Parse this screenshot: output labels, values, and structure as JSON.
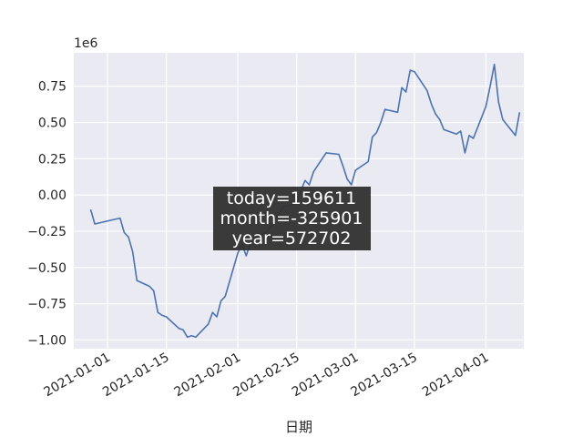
{
  "chart_data": {
    "type": "line",
    "title": "",
    "xlabel": "日期",
    "ylabel": "",
    "y_offset_label": "1e6",
    "y_multiplier": 1000000,
    "grid": true,
    "x_ticks": [
      "2021-01-01",
      "2021-01-15",
      "2021-02-01",
      "2021-02-15",
      "2021-03-01",
      "2021-03-15",
      "2021-04-01"
    ],
    "y_ticks": [
      {
        "value": 0.75,
        "label": "0.75"
      },
      {
        "value": 0.5,
        "label": "0.50"
      },
      {
        "value": 0.25,
        "label": "0.25"
      },
      {
        "value": 0.0,
        "label": "0.00"
      },
      {
        "value": -0.25,
        "label": "−0.25"
      },
      {
        "value": -0.5,
        "label": "−0.50"
      },
      {
        "value": -0.75,
        "label": "−0.75"
      },
      {
        "value": -1.0,
        "label": "−1.00"
      }
    ],
    "xlim": [
      "2020-12-24",
      "2021-04-10"
    ],
    "ylim": [
      -1.06,
      0.98
    ],
    "annotation_lines": [
      "today=159611",
      "month=-325901",
      "year=572702"
    ],
    "series": [
      {
        "color": "#4c72b0",
        "points": [
          [
            "2020-12-28",
            -0.1
          ],
          [
            "2020-12-29",
            -0.2
          ],
          [
            "2021-01-04",
            -0.16
          ],
          [
            "2021-01-05",
            -0.26
          ],
          [
            "2021-01-06",
            -0.29
          ],
          [
            "2021-01-07",
            -0.39
          ],
          [
            "2021-01-08",
            -0.59
          ],
          [
            "2021-01-11",
            -0.63
          ],
          [
            "2021-01-12",
            -0.66
          ],
          [
            "2021-01-13",
            -0.81
          ],
          [
            "2021-01-14",
            -0.83
          ],
          [
            "2021-01-15",
            -0.84
          ],
          [
            "2021-01-18",
            -0.92
          ],
          [
            "2021-01-19",
            -0.93
          ],
          [
            "2021-01-20",
            -0.98
          ],
          [
            "2021-01-21",
            -0.97
          ],
          [
            "2021-01-22",
            -0.98
          ],
          [
            "2021-01-25",
            -0.89
          ],
          [
            "2021-01-26",
            -0.81
          ],
          [
            "2021-01-27",
            -0.84
          ],
          [
            "2021-01-28",
            -0.73
          ],
          [
            "2021-01-29",
            -0.7
          ],
          [
            "2021-02-01",
            -0.4
          ],
          [
            "2021-02-02",
            -0.34
          ],
          [
            "2021-02-03",
            -0.42
          ],
          [
            "2021-02-04",
            -0.33
          ],
          [
            "2021-02-05",
            -0.3
          ],
          [
            "2021-02-08",
            -0.25
          ],
          [
            "2021-02-09",
            -0.21
          ],
          [
            "2021-02-10",
            -0.16
          ],
          [
            "2021-02-11",
            -0.12
          ],
          [
            "2021-02-12",
            -0.08
          ],
          [
            "2021-02-15",
            -0.06
          ],
          [
            "2021-02-16",
            0.03
          ],
          [
            "2021-02-17",
            0.1
          ],
          [
            "2021-02-18",
            0.07
          ],
          [
            "2021-02-19",
            0.16
          ],
          [
            "2021-02-22",
            0.29
          ],
          [
            "2021-02-25",
            0.28
          ],
          [
            "2021-02-26",
            0.2
          ],
          [
            "2021-02-27",
            0.11
          ],
          [
            "2021-02-28",
            0.07
          ],
          [
            "2021-03-01",
            0.17
          ],
          [
            "2021-03-04",
            0.23
          ],
          [
            "2021-03-05",
            0.4
          ],
          [
            "2021-03-06",
            0.43
          ],
          [
            "2021-03-07",
            0.5
          ],
          [
            "2021-03-08",
            0.59
          ],
          [
            "2021-03-11",
            0.57
          ],
          [
            "2021-03-12",
            0.74
          ],
          [
            "2021-03-13",
            0.71
          ],
          [
            "2021-03-14",
            0.86
          ],
          [
            "2021-03-15",
            0.85
          ],
          [
            "2021-03-18",
            0.72
          ],
          [
            "2021-03-19",
            0.63
          ],
          [
            "2021-03-20",
            0.56
          ],
          [
            "2021-03-21",
            0.52
          ],
          [
            "2021-03-22",
            0.45
          ],
          [
            "2021-03-25",
            0.42
          ],
          [
            "2021-03-26",
            0.44
          ],
          [
            "2021-03-27",
            0.29
          ],
          [
            "2021-03-28",
            0.41
          ],
          [
            "2021-03-29",
            0.39
          ],
          [
            "2021-04-01",
            0.61
          ],
          [
            "2021-04-02",
            0.75
          ],
          [
            "2021-04-03",
            0.9
          ],
          [
            "2021-04-04",
            0.64
          ],
          [
            "2021-04-05",
            0.52
          ],
          [
            "2021-04-08",
            0.41
          ],
          [
            "2021-04-09",
            0.57
          ]
        ]
      }
    ]
  }
}
